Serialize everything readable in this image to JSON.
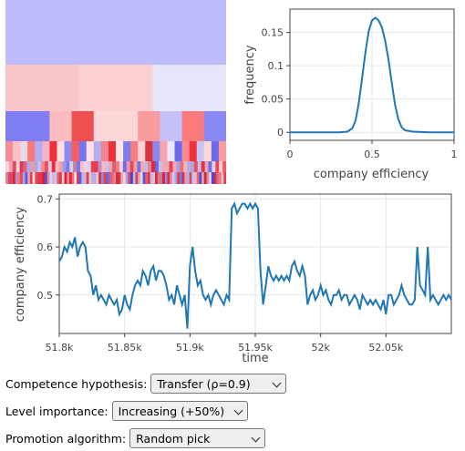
{
  "chart_data": [
    {
      "type": "heatmap",
      "rows": [
        {
          "cells": [
            "#bfbcfb"
          ]
        },
        {
          "cells": [
            "#f9c6c9",
            "#fcd0d2",
            "#e5e5fb"
          ]
        },
        {
          "cells": [
            "#7f7ff3",
            "#7f7ff3",
            "#fbbcbf",
            "#ee5052",
            "#fdd6d7",
            "#fdd6d7",
            "#fa9b9c",
            "#c4c1f8",
            "#fb7a7c",
            "#8a88f2"
          ]
        },
        {
          "cells": [
            "#f38d95",
            "#fbc1c4",
            "#e9dae8",
            "#fb7879",
            "#b3aef4",
            "#f4b5c0",
            "#f0303a",
            "#fde0e1",
            "#8f8bee",
            "#fb5c60",
            "#7375f1",
            "#fee1e3",
            "#b1afee",
            "#f5828a",
            "#ec3238",
            "#fee5e6",
            "#7e7fee",
            "#f87c80",
            "#fbd3d4",
            "#db3242",
            "#8a87f3",
            "#f9a6ab",
            "#e8e7fc",
            "#6a6bec",
            "#f98c90",
            "#f03139",
            "#c9c6f6",
            "#fcd7d9",
            "#6a6be8",
            "#fb9ea2"
          ]
        },
        {
          "cells": [
            "#f8d2d8",
            "#f5a3a9",
            "#d64d66",
            "#fdd1d5",
            "#d93d5c",
            "#e35f79",
            "#aaa7f6",
            "#f49a9f",
            "#b5a4d9",
            "#c2c0f6",
            "#f48a90",
            "#ee4f55",
            "#d5c9ed",
            "#eb2b38",
            "#f8bfc4",
            "#f69ea3",
            "#9c99f2",
            "#7b7ce9",
            "#d9ccea",
            "#c07fa6",
            "#7b75e8",
            "#fbbfc3",
            "#f3d4e0",
            "#d7d3f6",
            "#e9444d",
            "#ec3a46",
            "#ba8fc6",
            "#f7b9bd",
            "#c9c0ec",
            "#f7a2a8",
            "#d65c79",
            "#f27b82",
            "#f4d4da",
            "#6c6de3",
            "#e89ab0",
            "#e6495a",
            "#fa9ea3",
            "#7374ea",
            "#f9a8ad",
            "#c8b9e6",
            "#e8818e",
            "#d22c42",
            "#6466e3",
            "#cbbfe7",
            "#f6a8ad",
            "#e5aab8",
            "#e34153",
            "#f9a7ac",
            "#a3a1f0",
            "#f06e76",
            "#fab2b7",
            "#abb0f3",
            "#b7a4d6",
            "#ee4e59",
            "#c1bff2",
            "#ec2f3c",
            "#e0a8bc",
            "#7270e5",
            "#dcd2ee",
            "#ec4752",
            "#fdd0d3",
            "#ef5d67"
          ]
        },
        {
          "cells": [
            "#f2838c",
            "#c24c8c",
            "#eb4453",
            "#d22a3b",
            "#ae90da",
            "#f17279",
            "#e9464e",
            "#a7a3ef",
            "#5d5be0",
            "#e9a3b4",
            "#e33f4b",
            "#fbdcdf",
            "#e24d5a",
            "#db3d4c",
            "#e63645",
            "#e11b2e",
            "#4f4fdf",
            "#e78899",
            "#d4d4f5",
            "#d7b4d1",
            "#c7c2f1",
            "#e15d6b",
            "#e23a46",
            "#eccfdf",
            "#dc1f33",
            "#e88a98",
            "#e32537",
            "#ec6d77",
            "#f4e2e7",
            "#d74153",
            "#5b5de4",
            "#b8b6f1",
            "#dab2c7",
            "#e03b4c",
            "#e1c5dc",
            "#c2a8d8",
            "#b2b1f1",
            "#f9c2c5",
            "#d62f42",
            "#8d8de8",
            "#e6414f",
            "#6461de",
            "#c05f92",
            "#e9636d",
            "#ea8290",
            "#cf2f47",
            "#de3248",
            "#e4acbd",
            "#f9d1d4",
            "#a7a1ea",
            "#d44b5f",
            "#4845dd",
            "#d1b2d4",
            "#c94b6b",
            "#f3a2a8",
            "#d2dcf8",
            "#5854dc",
            "#e95d67",
            "#d93b4d",
            "#c1bcf0",
            "#e4bad1",
            "#d42b3e",
            "#e2747f",
            "#bd7ba4",
            "#d92334",
            "#8f8ae8",
            "#dc2c3e",
            "#ea8893",
            "#d1cbf2",
            "#a8a0e8",
            "#e53a4b",
            "#7878e4",
            "#c73955",
            "#ed99a2",
            "#b2afee",
            "#d34b62",
            "#c7c2ee",
            "#eab9c6",
            "#e76972",
            "#4e4cdc",
            "#e5a3b0",
            "#c82b40",
            "#e98791",
            "#dbd6f4",
            "#4848dc",
            "#d92e44",
            "#d66d86",
            "#ed7781",
            "#f1bdc5",
            "#e13f4f"
          ]
        }
      ]
    },
    {
      "type": "line",
      "xlabel": "company efficiency",
      "ylabel": "frequency",
      "xlim": [
        0,
        1
      ],
      "ylim": [
        -0.012,
        0.185
      ],
      "xticks": [
        "0",
        "0.5",
        "1"
      ],
      "yticks": [
        "0",
        "0.05",
        "0.1",
        "0.15"
      ],
      "x": [
        0,
        0.2,
        0.3,
        0.35,
        0.38,
        0.4,
        0.42,
        0.44,
        0.46,
        0.48,
        0.5,
        0.52,
        0.54,
        0.56,
        0.58,
        0.6,
        0.62,
        0.64,
        0.66,
        0.68,
        0.7,
        0.75,
        0.85,
        1.0
      ],
      "y": [
        0,
        0,
        0,
        0.001,
        0.006,
        0.018,
        0.045,
        0.082,
        0.12,
        0.152,
        0.168,
        0.172,
        0.168,
        0.158,
        0.138,
        0.11,
        0.075,
        0.042,
        0.02,
        0.008,
        0.003,
        0.001,
        0,
        0
      ],
      "grid": true
    },
    {
      "type": "line",
      "xlabel": "time",
      "ylabel": "company efficiency",
      "xlim": [
        51800,
        52100
      ],
      "ylim": [
        0.42,
        0.71
      ],
      "xticks": [
        "51.8k",
        "51.85k",
        "51.9k",
        "51.95k",
        "52k",
        "52.05k"
      ],
      "yticks": [
        "0.5",
        "0.6",
        "0.7"
      ],
      "x": [
        51800,
        51802,
        51804,
        51806,
        51808,
        51810,
        51812,
        51814,
        51816,
        51818,
        51820,
        51822,
        51824,
        51826,
        51828,
        51830,
        51832,
        51834,
        51836,
        51838,
        51840,
        51842,
        51844,
        51846,
        51848,
        51850,
        51852,
        51854,
        51856,
        51858,
        51860,
        51862,
        51864,
        51866,
        51868,
        51870,
        51872,
        51874,
        51876,
        51878,
        51880,
        51882,
        51884,
        51886,
        51888,
        51890,
        51892,
        51894,
        51896,
        51898,
        51900,
        51902,
        51904,
        51906,
        51908,
        51910,
        51912,
        51914,
        51916,
        51918,
        51920,
        51922,
        51924,
        51926,
        51928,
        51930,
        51932,
        51934,
        51936,
        51938,
        51940,
        51942,
        51944,
        51946,
        51948,
        51950,
        51952,
        51954,
        51956,
        51958,
        51960,
        51962,
        51964,
        51966,
        51968,
        51970,
        51972,
        51974,
        51976,
        51978,
        51980,
        51982,
        51984,
        51986,
        51988,
        51990,
        51992,
        51994,
        51996,
        51998,
        52000,
        52002,
        52004,
        52006,
        52008,
        52010,
        52012,
        52014,
        52016,
        52018,
        52020,
        52022,
        52024,
        52026,
        52028,
        52030,
        52032,
        52034,
        52036,
        52038,
        52040,
        52042,
        52044,
        52046,
        52048,
        52050,
        52052,
        52054,
        52056,
        52058,
        52060,
        52062,
        52064,
        52066,
        52068,
        52070,
        52072,
        52074,
        52076,
        52078,
        52080,
        52082,
        52084,
        52086,
        52088,
        52090,
        52092,
        52094,
        52096,
        52098,
        52100
      ],
      "y": [
        0.57,
        0.58,
        0.6,
        0.59,
        0.61,
        0.6,
        0.62,
        0.58,
        0.6,
        0.61,
        0.6,
        0.55,
        0.54,
        0.5,
        0.52,
        0.49,
        0.5,
        0.49,
        0.48,
        0.5,
        0.49,
        0.48,
        0.49,
        0.46,
        0.47,
        0.5,
        0.48,
        0.47,
        0.5,
        0.52,
        0.53,
        0.52,
        0.55,
        0.54,
        0.52,
        0.55,
        0.56,
        0.53,
        0.55,
        0.55,
        0.54,
        0.52,
        0.49,
        0.5,
        0.48,
        0.52,
        0.5,
        0.48,
        0.5,
        0.43,
        0.56,
        0.6,
        0.55,
        0.52,
        0.53,
        0.5,
        0.49,
        0.5,
        0.48,
        0.5,
        0.51,
        0.5,
        0.49,
        0.48,
        0.5,
        0.49,
        0.68,
        0.69,
        0.67,
        0.68,
        0.69,
        0.69,
        0.68,
        0.69,
        0.68,
        0.69,
        0.68,
        0.55,
        0.48,
        0.52,
        0.56,
        0.54,
        0.53,
        0.54,
        0.53,
        0.54,
        0.53,
        0.54,
        0.53,
        0.56,
        0.57,
        0.55,
        0.54,
        0.56,
        0.54,
        0.48,
        0.5,
        0.51,
        0.49,
        0.5,
        0.52,
        0.5,
        0.51,
        0.49,
        0.48,
        0.5,
        0.5,
        0.51,
        0.49,
        0.5,
        0.5,
        0.48,
        0.49,
        0.5,
        0.49,
        0.47,
        0.5,
        0.49,
        0.48,
        0.49,
        0.48,
        0.49,
        0.48,
        0.47,
        0.49,
        0.46,
        0.5,
        0.5,
        0.48,
        0.49,
        0.5,
        0.52,
        0.5,
        0.49,
        0.48,
        0.48,
        0.49,
        0.6,
        0.52,
        0.51,
        0.5,
        0.6,
        0.49,
        0.5,
        0.49,
        0.48,
        0.49,
        0.5,
        0.49,
        0.5,
        0.49
      ],
      "grid": true
    }
  ],
  "controls": {
    "competence": {
      "label": "Competence hypothesis:",
      "value": "Transfer (ρ=0.9)"
    },
    "level": {
      "label": "Level importance:",
      "value": "Increasing (+50%)"
    },
    "promotion": {
      "label": "Promotion algorithm:",
      "value": "Random pick"
    }
  }
}
